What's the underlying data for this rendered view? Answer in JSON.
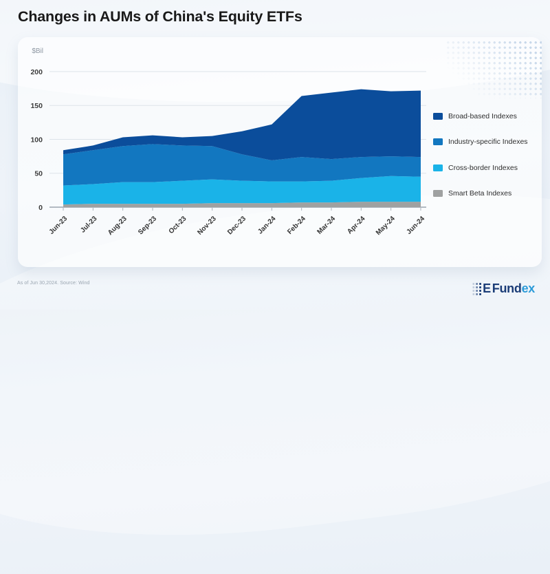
{
  "page": {
    "title": "Changes in AUMs of China's Equity ETFs",
    "footnote": "As of Jun 30,2024. Source: Wind",
    "logo": {
      "e": "E",
      "fund": "Fund",
      "ex": "ex"
    }
  },
  "chart_data": {
    "type": "area",
    "stacked": true,
    "title": "Changes in AUMs of China's Equity ETFs",
    "unit_label": "$Bil",
    "grid": "horizontal",
    "legend_position": "right",
    "ylim": [
      0,
      200
    ],
    "yticks": [
      0,
      50,
      100,
      150,
      200
    ],
    "categories": [
      "Jun-23",
      "Jul-23",
      "Aug-23",
      "Sep-23",
      "Oct-23",
      "Nov-23",
      "Dec-23",
      "Jan-24",
      "Feb-24",
      "Mar-24",
      "Apr-24",
      "May-24",
      "Jun-24"
    ],
    "series": [
      {
        "name": "Smart Beta Indexes",
        "color": "#9fa1a1",
        "values": [
          4,
          5,
          5,
          5,
          5,
          6,
          6,
          6,
          7,
          7,
          8,
          8,
          8
        ]
      },
      {
        "name": "Cross-border Indexes",
        "color": "#1ab3e8",
        "values": [
          28,
          29,
          32,
          32,
          34,
          35,
          33,
          32,
          31,
          32,
          35,
          38,
          37
        ]
      },
      {
        "name": "Industry-specific Indexes",
        "color": "#1277c0",
        "values": [
          46,
          50,
          53,
          56,
          52,
          49,
          39,
          31,
          36,
          32,
          31,
          29,
          29
        ]
      },
      {
        "name": "Broad-based Indexes",
        "color": "#0b4d9b",
        "values": [
          6,
          7,
          13,
          13,
          12,
          15,
          34,
          53,
          90,
          98,
          100,
          96,
          98
        ]
      }
    ],
    "stack_order": "bottom_to_top",
    "totals": [
      84,
      91,
      103,
      106,
      103,
      105,
      112,
      122,
      164,
      169,
      174,
      171,
      172
    ]
  }
}
